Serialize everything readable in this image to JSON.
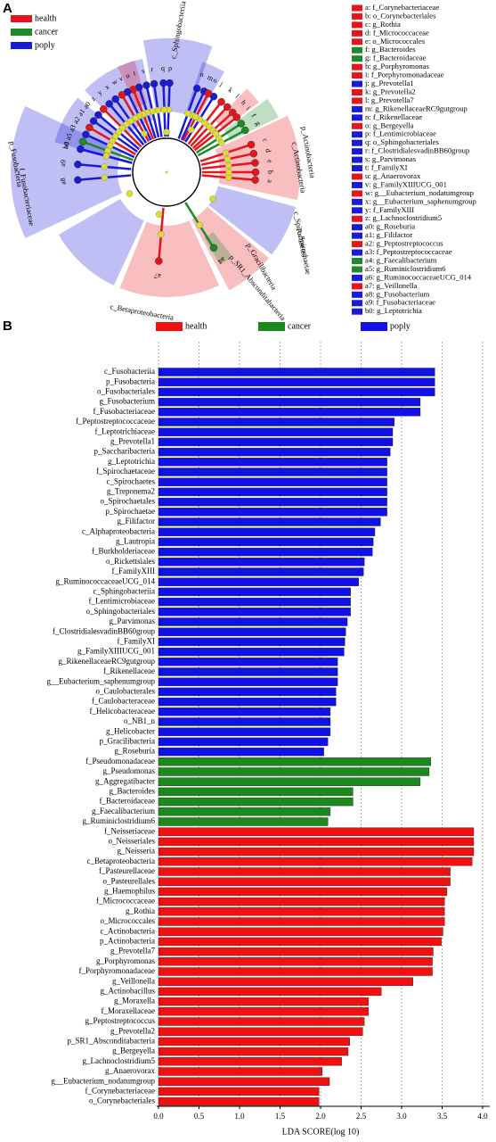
{
  "panel_a": {
    "label": "A",
    "legend": [
      {
        "name": "health",
        "color": "#e8141c"
      },
      {
        "name": "cancer",
        "color": "#1e8a2a"
      },
      {
        "name": "poply",
        "color": "#1a1adb"
      }
    ],
    "clade_labels": [
      "c_Sphingobacteriia",
      "p_Actinobacteria",
      "c_Actinobacteria",
      "c_Spirochaetes",
      "p_Spirochaetae",
      "p_SR1_Absconditabacteria",
      "c_Betaproteobacteria",
      "p_Gracilibacteria",
      "f_Fusobacteriaceae",
      "p_Fusobacteria"
    ],
    "leaves": [
      {
        "key": "a",
        "label": "a: f_Corynebacteriaceae",
        "color": "#e8141c"
      },
      {
        "key": "b",
        "label": "b: o_Corynebacteriales",
        "color": "#e8141c"
      },
      {
        "key": "c",
        "label": "c: g_Rothia",
        "color": "#e8141c"
      },
      {
        "key": "d",
        "label": "d: f_Micrococcaceae",
        "color": "#e8141c"
      },
      {
        "key": "e",
        "label": "e: o_Micrococcales",
        "color": "#e8141c"
      },
      {
        "key": "f",
        "label": "f: g_Bacteroides",
        "color": "#1e8a2a"
      },
      {
        "key": "g",
        "label": "g: f_Bacteroidaceae",
        "color": "#1e8a2a"
      },
      {
        "key": "h",
        "label": "h: g_Porphyromonas",
        "color": "#e8141c"
      },
      {
        "key": "i",
        "label": "i: f_Porphyromonadaceae",
        "color": "#e8141c"
      },
      {
        "key": "j",
        "label": "j: g_Prevotella1",
        "color": "#1a1adb"
      },
      {
        "key": "k",
        "label": "k: g_Prevotella2",
        "color": "#e8141c"
      },
      {
        "key": "l",
        "label": "l: g_Prevotella7",
        "color": "#e8141c"
      },
      {
        "key": "m",
        "label": "m: g_RikenellaceaeRC9gutgroup",
        "color": "#1a1adb"
      },
      {
        "key": "n",
        "label": "n: f_Rikenellaceae",
        "color": "#1a1adb"
      },
      {
        "key": "o",
        "label": "o: g_Bergeyella",
        "color": "#e8141c"
      },
      {
        "key": "p",
        "label": "p: f_Lentimicrobiaceae",
        "color": "#1a1adb"
      },
      {
        "key": "q",
        "label": "q: o_Sphingobacteriales",
        "color": "#1a1adb"
      },
      {
        "key": "r",
        "label": "r: f_ClostridialesvadinBB60group",
        "color": "#1a1adb"
      },
      {
        "key": "s",
        "label": "s: g_Parvimonas",
        "color": "#1a1adb"
      },
      {
        "key": "t",
        "label": "t: f_FamilyXI",
        "color": "#1a1adb"
      },
      {
        "key": "u",
        "label": "u: g_Anaerovorax",
        "color": "#e8141c"
      },
      {
        "key": "v",
        "label": "v: g_FamilyXIIIUCG_001",
        "color": "#1a1adb"
      },
      {
        "key": "w",
        "label": "w: g__Eubacterium_nodatumgroup",
        "color": "#e8141c"
      },
      {
        "key": "x",
        "label": "x: g__Eubacterium_saphenumgroup",
        "color": "#1a1adb"
      },
      {
        "key": "y",
        "label": "y: f_FamilyXIII",
        "color": "#1a1adb"
      },
      {
        "key": "z",
        "label": "z: g_Lachnoclostridium5",
        "color": "#e8141c"
      },
      {
        "key": "a0",
        "label": "a0: g_Roseburia",
        "color": "#1a1adb"
      },
      {
        "key": "a1",
        "label": "a1: g_Filifactor",
        "color": "#1a1adb"
      },
      {
        "key": "a2",
        "label": "a2: g_Peptostreptococcus",
        "color": "#e8141c"
      },
      {
        "key": "a3",
        "label": "a3: f_Peptostreptococcaceae",
        "color": "#1a1adb"
      },
      {
        "key": "a4",
        "label": "a4: g_Faecalibacterium",
        "color": "#1e8a2a"
      },
      {
        "key": "a5",
        "label": "a5: g_Ruminiclostridium6",
        "color": "#1e8a2a"
      },
      {
        "key": "a6",
        "label": "a6: g_RuminococcaceaeUCG_014",
        "color": "#1a1adb"
      },
      {
        "key": "a7",
        "label": "a7: g_Veillonella",
        "color": "#e8141c"
      },
      {
        "key": "a8",
        "label": "a8: g_Fusobacterium",
        "color": "#1a1adb"
      },
      {
        "key": "a9",
        "label": "a9: f_Fusobacteriaceae",
        "color": "#1a1adb"
      },
      {
        "key": "b0",
        "label": "b0: g_Leptotrichia",
        "color": "#1a1adb"
      }
    ]
  },
  "chart_data": {
    "type": "barh",
    "panel_label": "B",
    "x_label": "LDA SCORE(log 10)",
    "xlim": [
      0,
      4.0
    ],
    "xticks": [
      {
        "value": 0,
        "label": "0.0"
      },
      0.5,
      {
        "value": 1,
        "label": "1.0"
      },
      1.5,
      {
        "value": 2,
        "label": "2.0"
      },
      2.5,
      {
        "value": 3,
        "label": "3.0"
      },
      3.5,
      {
        "value": 4,
        "label": "4.0"
      }
    ],
    "grid": true,
    "categories": [
      "c_Fusobacteriia",
      "p_Fusobacteria",
      "o_Fusobacteriales",
      "g_Fusobacterium",
      "f_Fusobacteriaceae",
      "f_Peptostreptococcaceae",
      "f_Leptotrichiaceae",
      "g_Prevotella1",
      "p_Saccharibacteria",
      "g_Leptotrichia",
      "f_Spirochaetaceae",
      "c_Spirochaetes",
      "g_Treponema2",
      "o_Spirochaetales",
      "p_Spirochaetae",
      "g_Filifactor",
      "c_Alphaproteobacteria",
      "g_Lautropia",
      "f_Burkholderiaceae",
      "o_Rickettsiales",
      "f_FamilyXIII",
      "g_RuminococcaceaeUCG_014",
      "c_Sphingobacteriia",
      "f_Lentimicrobiaceae",
      "o_Sphingobacteriales",
      "g_Parvimonas",
      "f_ClostridialesvadinBB60group",
      "f_FamilyXI",
      "g_FamilyXIIIUCG_001",
      "g_RikenellaceaeRC9gutgroup",
      "f_Rikenellaceae",
      "g__Eubacterium_saphenumgroup",
      "o_Caulobacterales",
      "f_Caulobacteraceae",
      "f_Helicobacteraceae",
      "o_NB1_n",
      "g_Helicobacter",
      "p_Gracilibacteria",
      "g_Roseburia",
      "f_Pseudomonadaceae",
      "g_Pseudomonas",
      "g_Aggregatibacter",
      "g_Bacteroides",
      "f_Bacteroidaceae",
      "g_Faecalibacterium",
      "g_Ruminiclostridium6",
      "f_Neisseriaceae",
      "o_Neisseriales",
      "g_Neisseria",
      "c_Betaproteobacteria",
      "f_Pasteurellaceae",
      "o_Pasteurellales",
      "g_Haemophilus",
      "f_Micrococcaceae",
      "g_Rothia",
      "o_Micrococcales",
      "c_Actinobacteria",
      "p_Actinobacteria",
      "g_Prevotella7",
      "g_Porphyromonas",
      "f_Porphyromonadaceae",
      "g_Veillonella",
      "g_Actinobacillus",
      "g_Moraxella",
      "f_Moraxellaceae",
      "g_Peptostreptococcus",
      "g_Prevotella2",
      "p_SR1_Absconditabacteria",
      "g_Bergeyella",
      "g_Lachnoclostridium5",
      "g_Anaerovorax",
      "g__Eubacterium_nodatumgroup",
      "f_Corynebacteriaceae",
      "o_Corynebacteriales"
    ],
    "series": [
      {
        "name": "health",
        "color": "#f01010",
        "values": [
          null,
          null,
          null,
          null,
          null,
          null,
          null,
          null,
          null,
          null,
          null,
          null,
          null,
          null,
          null,
          null,
          null,
          null,
          null,
          null,
          null,
          null,
          null,
          null,
          null,
          null,
          null,
          null,
          null,
          null,
          null,
          null,
          null,
          null,
          null,
          null,
          null,
          null,
          null,
          null,
          null,
          null,
          null,
          null,
          null,
          null,
          3.89,
          3.89,
          3.89,
          3.87,
          3.6,
          3.6,
          3.56,
          3.53,
          3.53,
          3.53,
          3.51,
          3.49,
          3.39,
          3.38,
          3.38,
          3.14,
          2.75,
          2.59,
          2.59,
          2.54,
          2.52,
          2.36,
          2.34,
          2.26,
          2.02,
          2.11,
          1.98,
          1.98
        ]
      },
      {
        "name": "cancer",
        "color": "#1a8a1a",
        "values": [
          null,
          null,
          null,
          null,
          null,
          null,
          null,
          null,
          null,
          null,
          null,
          null,
          null,
          null,
          null,
          null,
          null,
          null,
          null,
          null,
          null,
          null,
          null,
          null,
          null,
          null,
          null,
          null,
          null,
          null,
          null,
          null,
          null,
          null,
          null,
          null,
          null,
          null,
          null,
          3.36,
          3.34,
          3.23,
          2.4,
          2.4,
          2.12,
          2.09,
          null,
          null,
          null,
          null,
          null,
          null,
          null,
          null,
          null,
          null,
          null,
          null,
          null,
          null,
          null,
          null,
          null,
          null,
          null,
          null,
          null,
          null,
          null,
          null,
          null,
          null,
          null,
          null
        ]
      },
      {
        "name": "poply",
        "color": "#1010e8",
        "values": [
          3.41,
          3.41,
          3.41,
          3.23,
          3.23,
          2.91,
          2.89,
          2.89,
          2.86,
          2.82,
          2.82,
          2.82,
          2.82,
          2.82,
          2.82,
          2.74,
          2.67,
          2.65,
          2.64,
          2.54,
          2.53,
          2.47,
          2.37,
          2.37,
          2.37,
          2.33,
          2.31,
          2.3,
          2.29,
          2.21,
          2.21,
          2.21,
          2.19,
          2.19,
          2.12,
          2.12,
          2.12,
          2.09,
          2.04,
          null,
          null,
          null,
          null,
          null,
          null,
          null,
          null,
          null,
          null,
          null,
          null,
          null,
          null,
          null,
          null,
          null,
          null,
          null,
          null,
          null,
          null,
          null,
          null,
          null,
          null,
          null,
          null,
          null,
          null,
          null,
          null,
          null,
          null,
          null
        ]
      }
    ]
  }
}
